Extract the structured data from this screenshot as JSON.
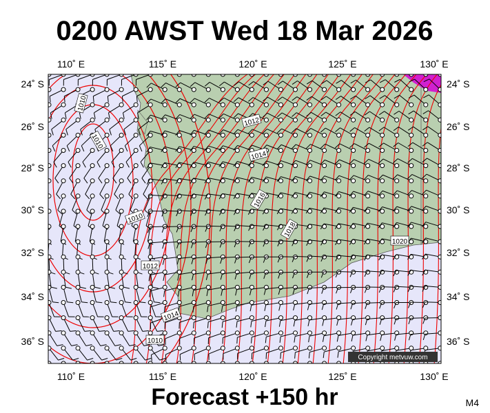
{
  "title": "0200 AWST Wed 18 Mar 2026",
  "subtitle": "Forecast +150 hr",
  "corner_label": "M4",
  "copyright": "Copyright metvuw.com",
  "lon_labels": [
    "110˚ E",
    "115˚ E",
    "120˚ E",
    "125˚ E",
    "130˚ E"
  ],
  "lat_labels": [
    "24˚ S",
    "26˚ S",
    "28˚ S",
    "30˚ S",
    "32˚ S",
    "34˚ S",
    "36˚ S"
  ],
  "contour_labels": [
    "1010",
    "1010",
    "1010",
    "1012",
    "1014",
    "1010",
    "1012",
    "1014",
    "1016",
    "1018",
    "1020"
  ]
}
